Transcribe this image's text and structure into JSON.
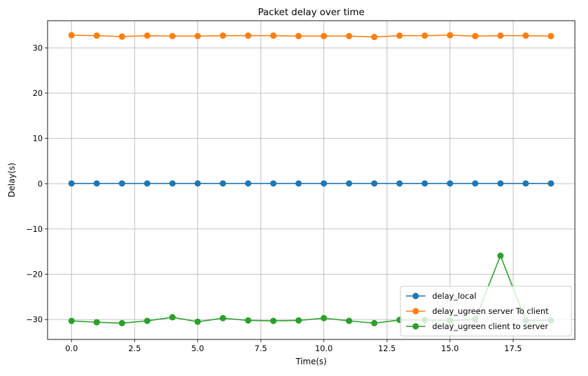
{
  "chart_data": {
    "type": "line",
    "title": "Packet delay over time",
    "xlabel": "Time(s)",
    "ylabel": "Delay(s)",
    "xlim": [
      -0.95,
      19.95
    ],
    "ylim": [
      -34.4,
      36.0
    ],
    "xticks": [
      0.0,
      2.5,
      5.0,
      7.5,
      10.0,
      12.5,
      15.0,
      17.5
    ],
    "xtick_labels": [
      "0.0",
      "2.5",
      "5.0",
      "7.5",
      "10.0",
      "12.5",
      "15.0",
      "17.5"
    ],
    "yticks": [
      -30,
      -20,
      -10,
      0,
      10,
      20,
      30
    ],
    "ytick_labels": [
      "−30",
      "−20",
      "−10",
      "0",
      "10",
      "20",
      "30"
    ],
    "grid": true,
    "legend_position": "lower-right",
    "x": [
      0,
      1,
      2,
      3,
      4,
      5,
      6,
      7,
      8,
      9,
      10,
      11,
      12,
      13,
      14,
      15,
      16,
      17,
      18,
      19
    ],
    "series": [
      {
        "name": "delay_local",
        "color": "#1f77b4",
        "marker": "circle",
        "values": [
          0.05,
          0.05,
          0.05,
          0.05,
          0.05,
          0.05,
          0.05,
          0.05,
          0.05,
          0.05,
          0.05,
          0.05,
          0.05,
          0.05,
          0.05,
          0.05,
          0.05,
          0.05,
          0.05,
          0.05
        ]
      },
      {
        "name": "delay_ugreen server To client",
        "color": "#ff7f0e",
        "marker": "circle",
        "values": [
          32.8,
          32.7,
          32.5,
          32.7,
          32.6,
          32.6,
          32.7,
          32.7,
          32.7,
          32.6,
          32.6,
          32.6,
          32.4,
          32.7,
          32.7,
          32.8,
          32.6,
          32.7,
          32.7,
          32.6
        ]
      },
      {
        "name": "delay_ugreen client to server",
        "color": "#2ca02c",
        "marker": "circle",
        "values": [
          -30.3,
          -30.6,
          -30.8,
          -30.3,
          -29.5,
          -30.5,
          -29.7,
          -30.2,
          -30.3,
          -30.2,
          -29.7,
          -30.3,
          -30.8,
          -30.1,
          -30.1,
          -30.2,
          -30.0,
          -15.9,
          -30.2,
          -30.2
        ]
      }
    ]
  }
}
